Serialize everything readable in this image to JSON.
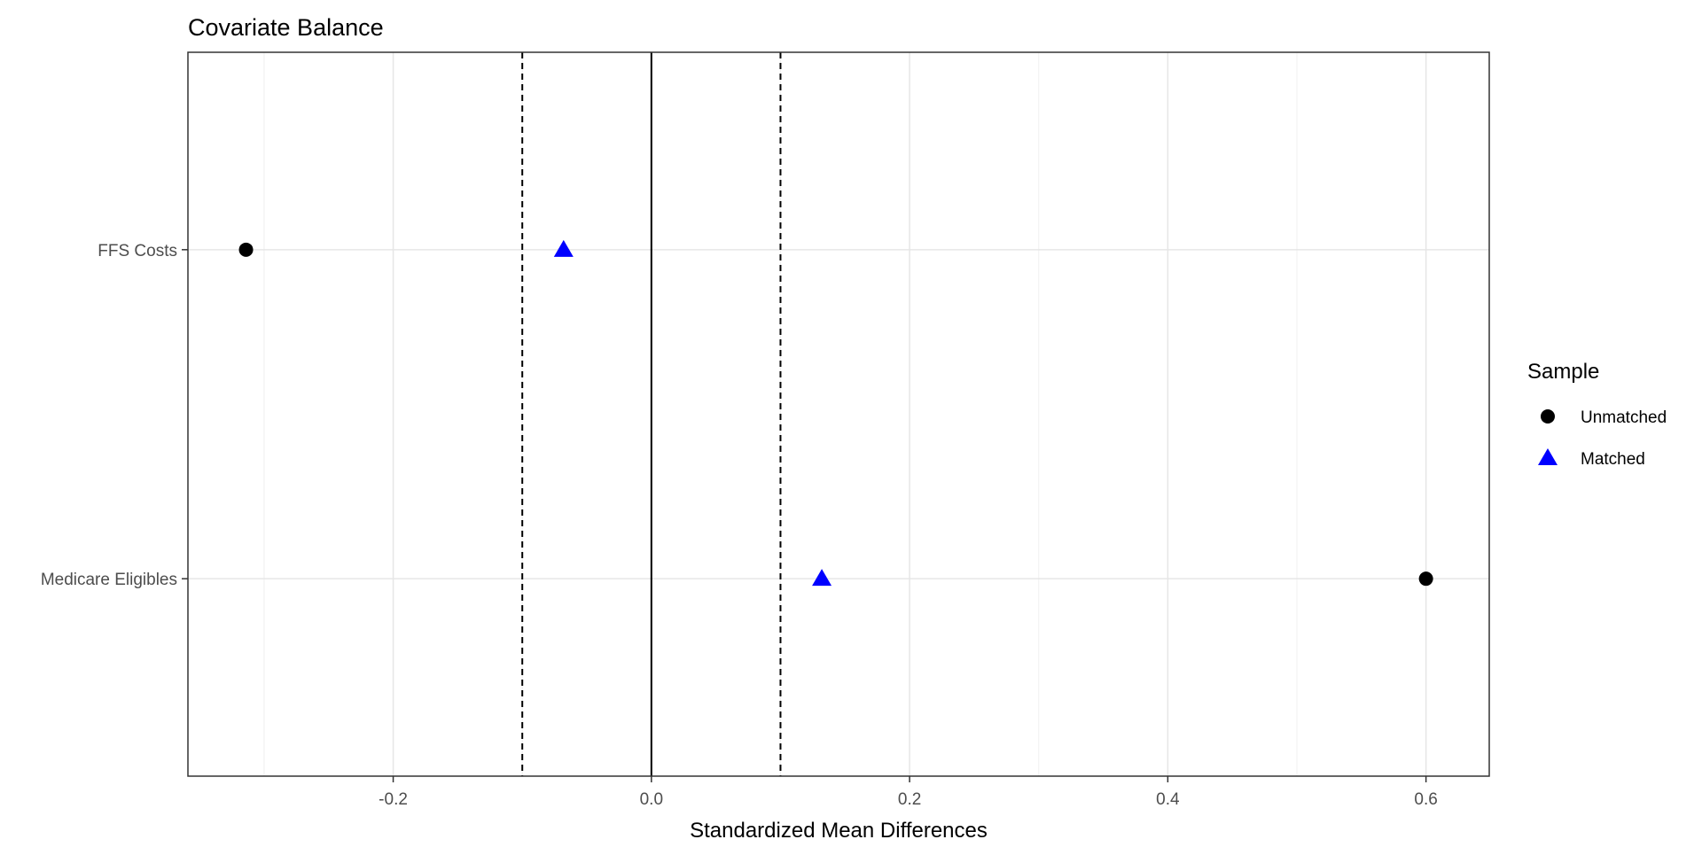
{
  "chart_data": {
    "type": "scatter",
    "title": "Covariate Balance",
    "xlabel": "Standardized Mean Differences",
    "ylabel": "",
    "xlim": [
      -0.359,
      0.649
    ],
    "x_ticks": [
      -0.2,
      0.0,
      0.2,
      0.4,
      0.6
    ],
    "x_tick_labels": [
      "-0.2",
      "0.0",
      "0.2",
      "0.4",
      "0.6"
    ],
    "x_minor_grid": [
      -0.3,
      -0.1,
      0.1,
      0.3,
      0.5
    ],
    "categories": [
      "Medicare Eligibles",
      "FFS Costs"
    ],
    "reference_lines": {
      "solid": [
        0.0
      ],
      "dashed": [
        -0.1,
        0.1
      ]
    },
    "grid": true,
    "legend": {
      "title": "Sample",
      "placement": "right"
    },
    "series": [
      {
        "name": "Unmatched",
        "shape": "circle",
        "color": "#000000",
        "values": [
          0.6,
          -0.314
        ]
      },
      {
        "name": "Matched",
        "shape": "triangle",
        "color": "#0000FF",
        "values": [
          0.132,
          -0.068
        ]
      }
    ]
  }
}
